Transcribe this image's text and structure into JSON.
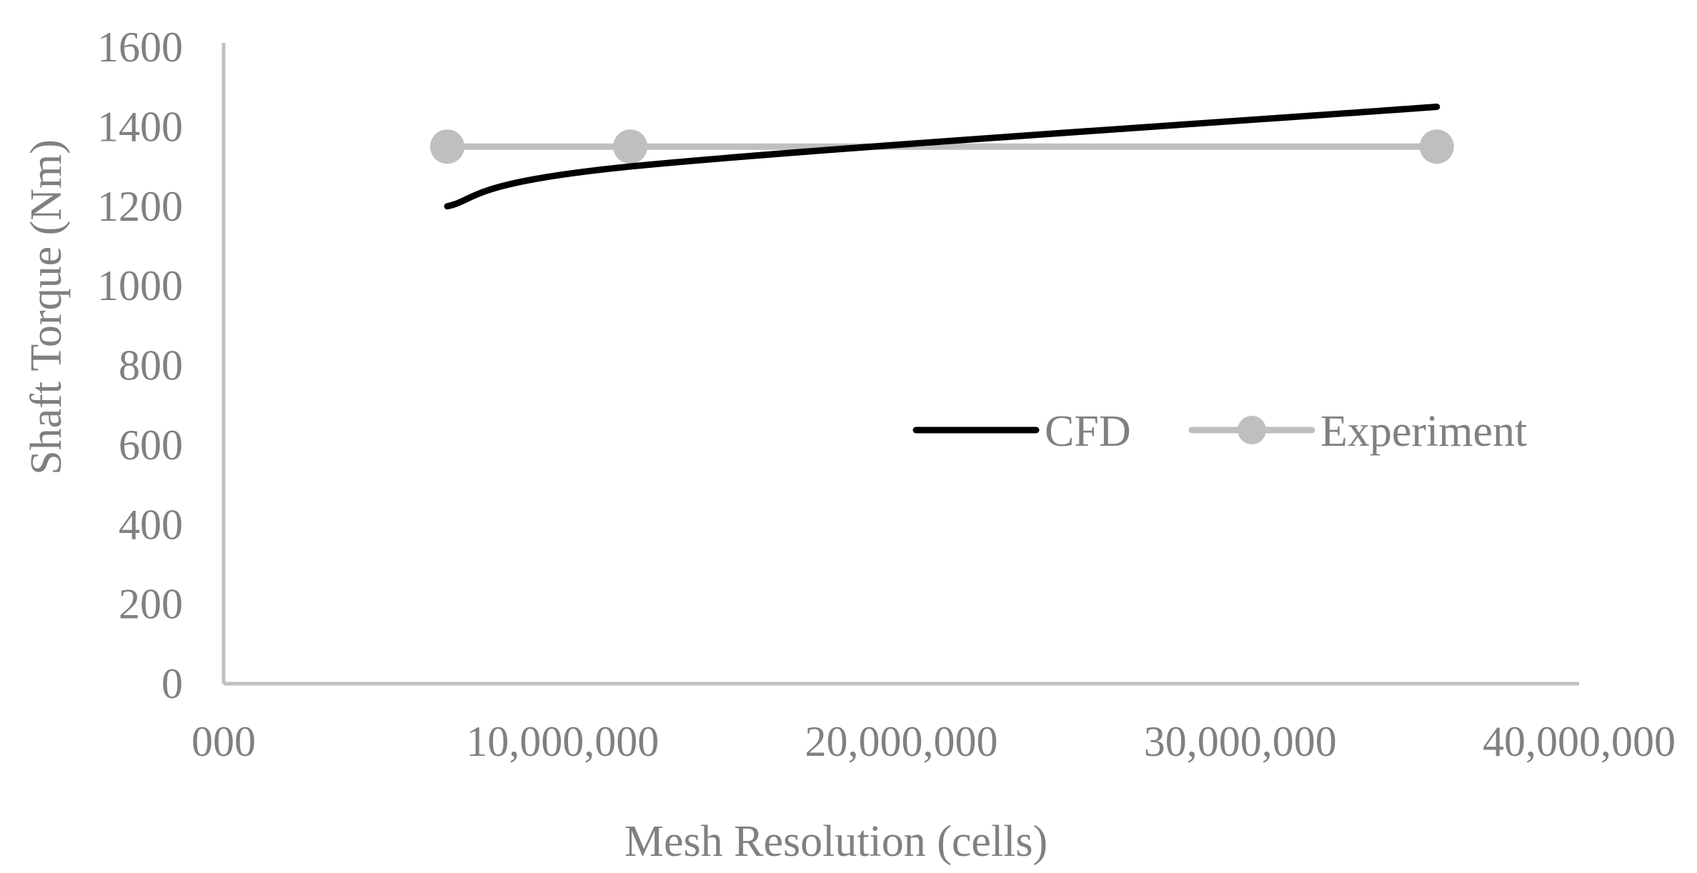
{
  "chart_data": {
    "type": "line",
    "title": "",
    "xlabel": "Mesh Resolution (cells)",
    "ylabel": "Shaft Torque (Nm)",
    "xlim": [
      0,
      40000000
    ],
    "ylim": [
      0,
      1600
    ],
    "x_ticks": [
      0,
      10000000,
      20000000,
      30000000,
      40000000
    ],
    "x_tick_labels": [
      "000",
      "10,000,000",
      "20,000,000",
      "30,000,000",
      "40,000,000"
    ],
    "y_ticks": [
      0,
      200,
      400,
      600,
      800,
      1000,
      1200,
      1400,
      1600
    ],
    "y_tick_labels": [
      "0",
      "200",
      "400",
      "600",
      "800",
      "1000",
      "1200",
      "1400",
      "1600"
    ],
    "grid": false,
    "legend_position": "center-right",
    "series": [
      {
        "name": "CFD",
        "color": "#000000",
        "smooth": true,
        "markers": false,
        "x": [
          6600000,
          12000000,
          35800000
        ],
        "y": [
          1200,
          1300,
          1450
        ]
      },
      {
        "name": "Experiment",
        "color": "#bfbfbf",
        "smooth": false,
        "markers": true,
        "x": [
          6600000,
          12000000,
          35800000
        ],
        "y": [
          1350,
          1350,
          1350
        ]
      }
    ]
  }
}
